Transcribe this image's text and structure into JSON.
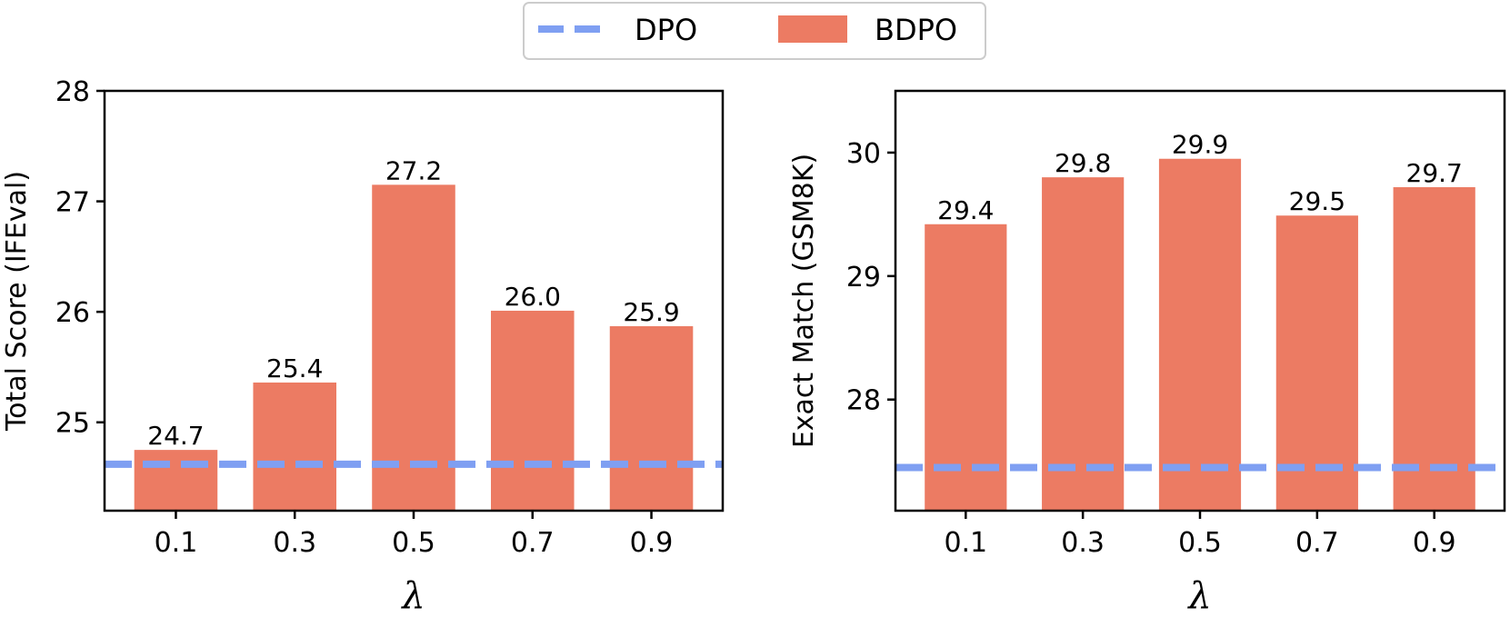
{
  "legend": {
    "items": [
      {
        "label": "DPO",
        "style": "dashed-line",
        "color": "#7f9ff2"
      },
      {
        "label": "BDPO",
        "style": "bar",
        "color": "#ec7b63"
      }
    ],
    "placement": "top-center"
  },
  "chart_data": [
    {
      "type": "bar",
      "title": "",
      "xlabel": "λ",
      "ylabel": "Total Score (IFEval)",
      "categories": [
        "0.1",
        "0.3",
        "0.5",
        "0.7",
        "0.9"
      ],
      "series": [
        {
          "name": "BDPO",
          "values": [
            24.75,
            25.36,
            27.15,
            26.01,
            25.87
          ],
          "labels": [
            "24.7",
            "25.4",
            "27.2",
            "26.0",
            "25.9"
          ],
          "color": "#ec7b63"
        }
      ],
      "baseline": {
        "name": "DPO",
        "value": 24.62,
        "color": "#7f9ff2",
        "style": "dashed"
      },
      "ylim": [
        24.2,
        28.0
      ],
      "yticks": [
        25,
        26,
        27,
        28
      ],
      "grid": false
    },
    {
      "type": "bar",
      "title": "",
      "xlabel": "λ",
      "ylabel": "Exact Match (GSM8K)",
      "categories": [
        "0.1",
        "0.3",
        "0.5",
        "0.7",
        "0.9"
      ],
      "series": [
        {
          "name": "BDPO",
          "values": [
            29.42,
            29.8,
            29.95,
            29.49,
            29.72
          ],
          "labels": [
            "29.4",
            "29.8",
            "29.9",
            "29.5",
            "29.7"
          ],
          "color": "#ec7b63"
        }
      ],
      "baseline": {
        "name": "DPO",
        "value": 27.45,
        "color": "#7f9ff2",
        "style": "dashed"
      },
      "ylim": [
        27.1,
        30.5
      ],
      "yticks": [
        28,
        29,
        30
      ],
      "grid": false
    }
  ]
}
